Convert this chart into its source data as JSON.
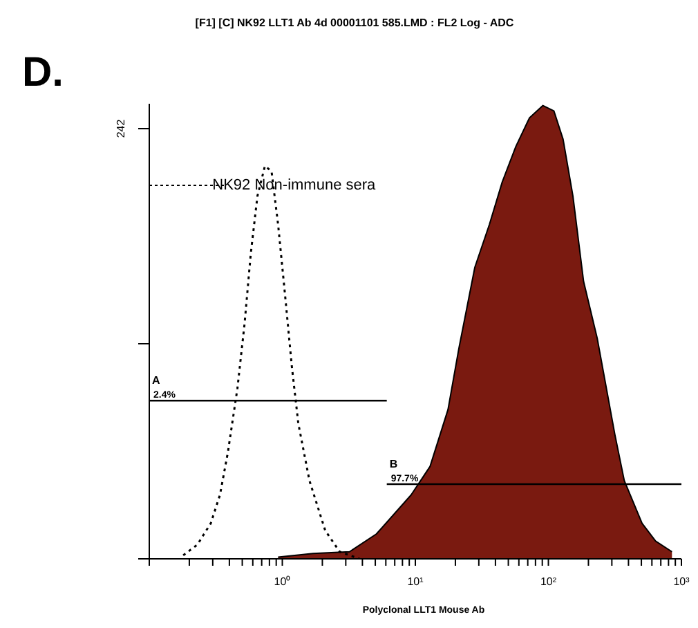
{
  "chart_data": {
    "type": "area",
    "title": "[F1] [C] NK92 LLT1 Ab 4d 00001101 585.LMD : FL2 Log - ADC",
    "xlabel": "Polyclonal LLT1 Mouse Ab",
    "annotations": [
      "D.",
      {
        "text": "2.4%",
        "x": 0.1,
        "y": 89
      },
      {
        "text": "97.7%",
        "x": 6.1,
        "y": 42
      }
    ],
    "log": "x",
    "xlim": [
      0.1,
      1000
    ],
    "xticks": [
      {
        "value": 0.1,
        "label": null
      },
      {
        "value": 0.2,
        "label": null
      },
      {
        "value": 0.3,
        "label": null
      },
      {
        "value": 0.4,
        "label": null
      },
      {
        "value": 0.5,
        "label": null
      },
      {
        "value": 0.6,
        "label": null
      },
      {
        "value": 0.7,
        "label": null
      },
      {
        "value": 0.8,
        "label": null
      },
      {
        "value": 0.9,
        "label": null
      },
      {
        "value": 1,
        "label": "10⁰"
      },
      {
        "value": 2,
        "label": null
      },
      {
        "value": 3,
        "label": null
      },
      {
        "value": 4,
        "label": null
      },
      {
        "value": 5,
        "label": null
      },
      {
        "value": 6,
        "label": null
      },
      {
        "value": 7,
        "label": null
      },
      {
        "value": 8,
        "label": null
      },
      {
        "value": 9,
        "label": null
      },
      {
        "value": 10,
        "label": "10¹"
      },
      {
        "value": 20,
        "label": null
      },
      {
        "value": 30,
        "label": null
      },
      {
        "value": 40,
        "label": null
      },
      {
        "value": 50,
        "label": null
      },
      {
        "value": 60,
        "label": null
      },
      {
        "value": 70,
        "label": null
      },
      {
        "value": 80,
        "label": null
      },
      {
        "value": 90,
        "label": null
      },
      {
        "value": 100,
        "label": "10²"
      },
      {
        "value": 200,
        "label": null
      },
      {
        "value": 300,
        "label": null
      },
      {
        "value": 400,
        "label": null
      },
      {
        "value": 500,
        "label": null
      },
      {
        "value": 600,
        "label": null
      },
      {
        "value": 700,
        "label": null
      },
      {
        "value": 800,
        "label": null
      },
      {
        "value": 900,
        "label": null
      },
      {
        "value": 1000,
        "label": "10³"
      }
    ],
    "ylim": [
      0,
      256
    ],
    "yticks": [
      {
        "value": 0,
        "label": null
      },
      {
        "value": 121,
        "label": null
      },
      242
    ],
    "grid": false,
    "legend": false,
    "series": [
      {
        "type": "line",
        "name": "NK92 Non-immune sera",
        "color": "#000000",
        "line_style": "dotted",
        "x": [
          0.18,
          0.23,
          0.29,
          0.34,
          0.39,
          0.46,
          0.52,
          0.58,
          0.65,
          0.74,
          0.83,
          0.93,
          1.05,
          1.18,
          1.32,
          1.6,
          2.1,
          2.7,
          3.8
        ],
        "values": [
          2,
          8,
          20,
          36,
          60,
          96,
          132,
          172,
          204,
          221,
          218,
          188,
          148,
          108,
          76,
          44,
          16,
          4,
          0
        ]
      },
      {
        "color": "#7a1a10",
        "x": [
          0.93,
          1.7,
          3.2,
          5.1,
          9.3,
          12.9,
          17.6,
          21.2,
          28,
          36,
          45,
          57,
          72,
          91,
          110,
          129,
          153,
          184,
          233,
          316,
          372,
          506,
          640,
          849
        ],
        "values": [
          1,
          3,
          4,
          14,
          36,
          52,
          84,
          118,
          164,
          188,
          212,
          232,
          248,
          255,
          252,
          236,
          204,
          156,
          124,
          70,
          44,
          20,
          10,
          4
        ]
      },
      {
        "type": "line",
        "name": "A",
        "color": "#000000",
        "line_style": "solid",
        "x": [
          0.1,
          6.1
        ],
        "values": [
          89,
          89
        ]
      },
      {
        "type": "line",
        "name": "B",
        "color": "#000000",
        "line_style": "solid",
        "x": [
          6.1,
          1000
        ],
        "values": [
          42,
          42
        ]
      }
    ]
  }
}
